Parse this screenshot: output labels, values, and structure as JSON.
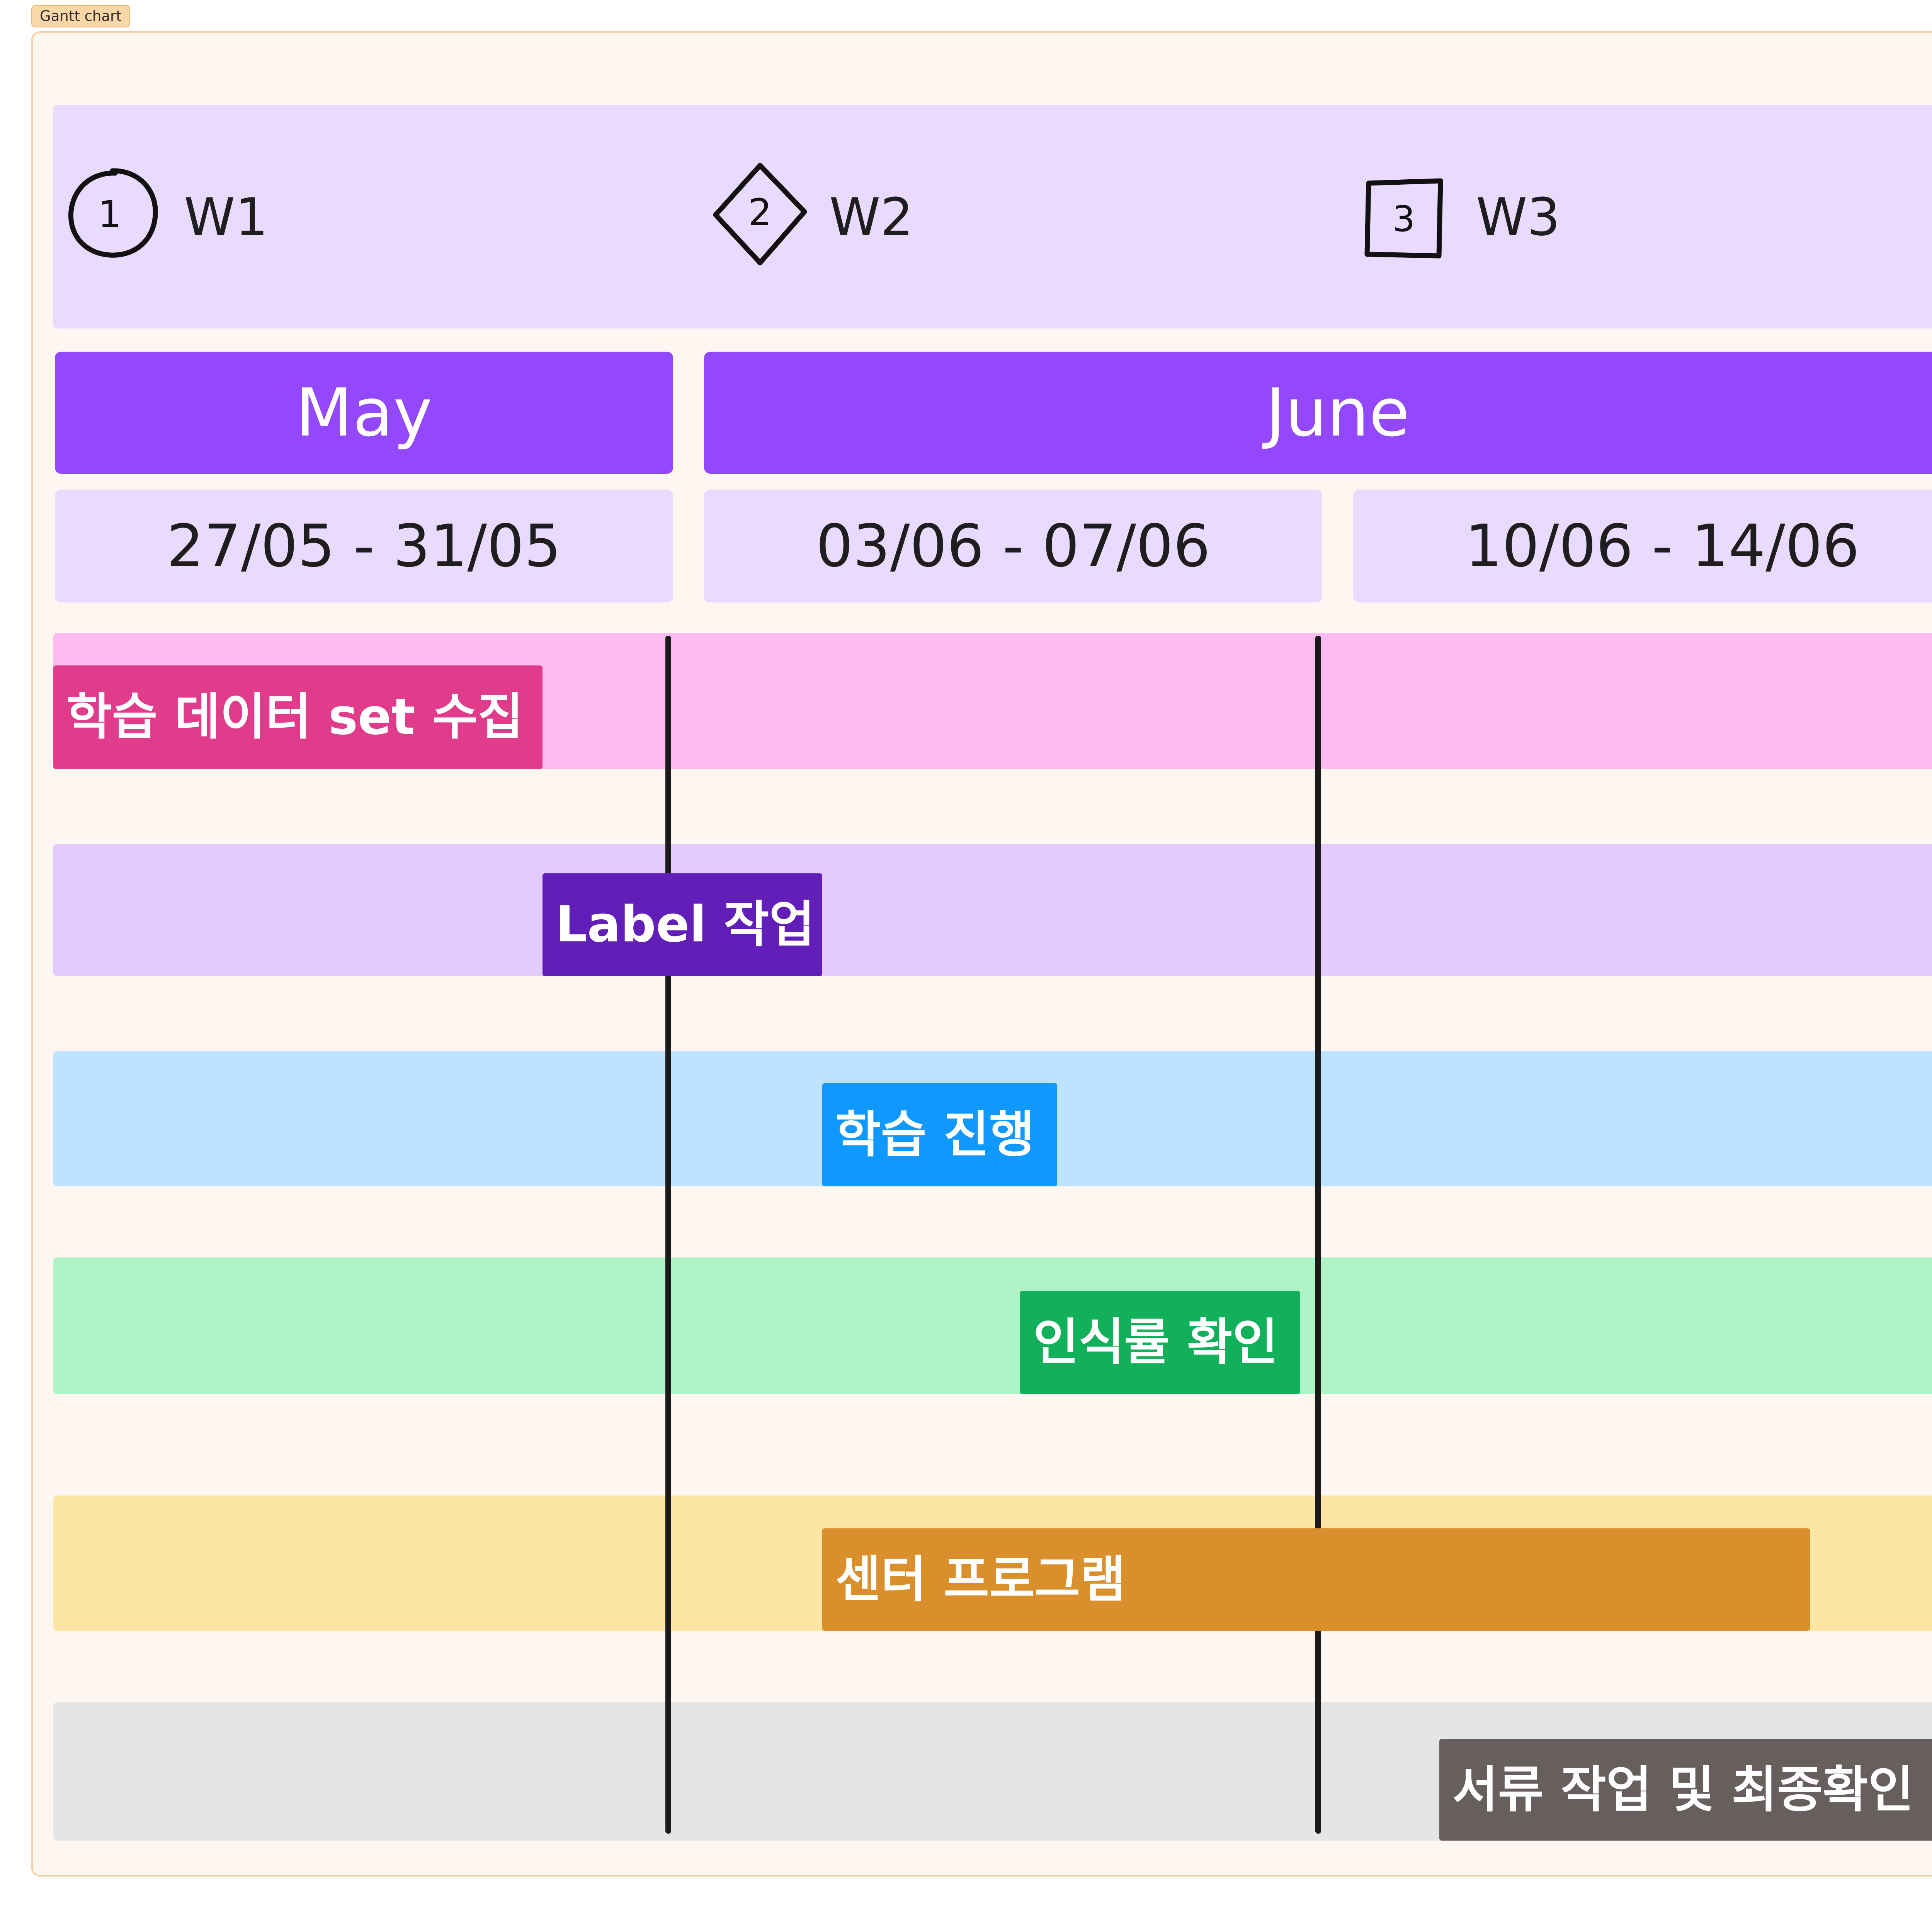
{
  "frame": {
    "tag": "Gantt chart"
  },
  "weeks": [
    {
      "badge": "1",
      "label": "W1",
      "icon": "circle-1-icon"
    },
    {
      "badge": "2",
      "label": "W2",
      "icon": "diamond-2-icon"
    },
    {
      "badge": "3",
      "label": "W3",
      "icon": "square-3-icon"
    }
  ],
  "months": {
    "may": "May",
    "june": "June"
  },
  "ranges": [
    "27/05 - 31/05",
    "03/06 - 07/06",
    "10/06 - 14/06"
  ],
  "tasks": [
    {
      "label": "학습 데이터 set 수집",
      "color": "#e13c8b",
      "row_color": "#ffbaf1"
    },
    {
      "label": "Label 작업",
      "color": "#621eb8",
      "row_color": "#e3caff"
    },
    {
      "label": "학습 진행",
      "color": "#0f99ff",
      "row_color": "#bde3ff"
    },
    {
      "label": "인식률 확인",
      "color": "#13b05c",
      "row_color": "#aff4c6"
    },
    {
      "label": "센터 프로그램",
      "color": "#d98f2b",
      "row_color": "#fde5a5"
    },
    {
      "label": "서류 작업 및 최종확인",
      "color": "#675e5e",
      "row_color": "#e5e5e5"
    }
  ],
  "colors": {
    "month_bg": "#9448fd",
    "week_band": "#e9daff",
    "frame_bg": "#fdf6f1",
    "divider": "#1a1a1a"
  }
}
